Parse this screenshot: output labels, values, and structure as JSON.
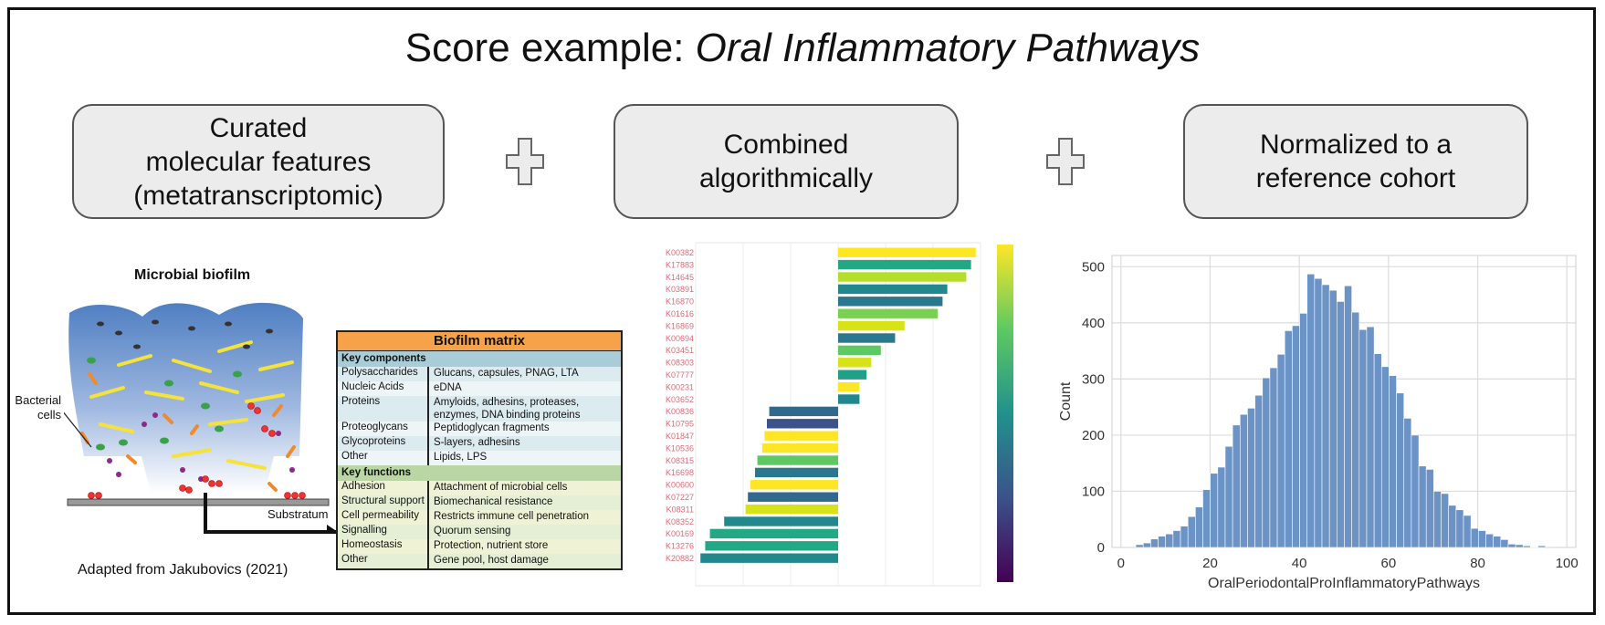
{
  "title": {
    "prefix": "Score example: ",
    "emphasis": "Oral Inflammatory Pathways"
  },
  "steps": [
    {
      "text": "Curated\nmolecular features\n(metatranscriptomic)"
    },
    {
      "text": "Combined\nalgorithmically"
    },
    {
      "text": "Normalized to a\nreference cohort"
    }
  ],
  "biofilm": {
    "title": "Microbial biofilm",
    "bacteria_label": "Bacterial\ncells",
    "substratum_label": "Substratum",
    "citation": "Adapted from Jakubovics (2021)"
  },
  "matrix": {
    "title": "Biofilm matrix",
    "components_header": "Key components",
    "components": [
      {
        "k": "Polysaccharides",
        "v": "Glucans, capsules, PNAG, LTA"
      },
      {
        "k": "Nucleic Acids",
        "v": "eDNA"
      },
      {
        "k": "Proteins",
        "v": "Amyloids, adhesins, proteases, enzymes, DNA binding proteins"
      },
      {
        "k": "Proteoglycans",
        "v": "Peptidoglycan fragments"
      },
      {
        "k": "Glycoproteins",
        "v": "S-layers, adhesins"
      },
      {
        "k": "Other",
        "v": "Lipids, LPS"
      }
    ],
    "functions_header": "Key functions",
    "functions": [
      {
        "k": "Adhesion",
        "v": "Attachment of microbial cells"
      },
      {
        "k": "Structural support",
        "v": "Biomechanical resistance"
      },
      {
        "k": "Cell permeability",
        "v": "Restricts immune cell penetration"
      },
      {
        "k": "Signalling",
        "v": "Quorum sensing"
      },
      {
        "k": "Homeostasis",
        "v": "Protection, nutrient store"
      },
      {
        "k": "Other",
        "v": "Gene pool, host damage"
      }
    ]
  },
  "chart_data": [
    {
      "type": "bar",
      "orientation": "horizontal",
      "categories": [
        "K00382",
        "K17883",
        "K14645",
        "K03891",
        "K16870",
        "K01616",
        "K16869",
        "K00694",
        "K03451",
        "K08303",
        "K07777",
        "K00231",
        "K03652",
        "K00836",
        "K10795",
        "K01847",
        "K10536",
        "K08315",
        "K16698",
        "K00600",
        "K07227",
        "K08311",
        "K08352",
        "K00169",
        "K13276",
        "K20882"
      ],
      "values": [
        0.29,
        0.28,
        0.27,
        0.23,
        0.22,
        0.21,
        0.14,
        0.12,
        0.09,
        0.07,
        0.06,
        0.045,
        0.045,
        -0.145,
        -0.15,
        -0.155,
        -0.16,
        -0.17,
        -0.175,
        -0.185,
        -0.19,
        -0.195,
        -0.24,
        -0.27,
        -0.28,
        -0.29
      ],
      "bar_colors": [
        "#fde725",
        "#22a884",
        "#b5de2b",
        "#23888e",
        "#2a788e",
        "#7ad151",
        "#d8e219",
        "#2a788e",
        "#5ec962",
        "#d8e219",
        "#1fa188",
        "#fde725",
        "#23888e",
        "#31688e",
        "#3b528b",
        "#fde725",
        "#fde725",
        "#5ec962",
        "#2a788e",
        "#fde725",
        "#31688e",
        "#d8e219",
        "#23888e",
        "#22a884",
        "#22a884",
        "#23888e"
      ],
      "xlim": [
        -0.3,
        0.3
      ],
      "colorbar": {
        "colormap": "viridis"
      }
    },
    {
      "type": "bar",
      "subtype": "histogram",
      "xlabel": "OralPeriodontalProInflammatoryPathways",
      "ylabel": "Count",
      "xlim": [
        -2,
        102
      ],
      "ylim": [
        0,
        520
      ],
      "xticks": [
        0,
        20,
        40,
        60,
        80,
        100
      ],
      "yticks": [
        0,
        100,
        200,
        300,
        400,
        500
      ],
      "bin_width": 1.67,
      "bin_start": 0,
      "values": [
        0,
        0,
        5,
        8,
        15,
        20,
        24,
        30,
        38,
        55,
        72,
        103,
        132,
        143,
        180,
        218,
        237,
        248,
        271,
        302,
        320,
        344,
        386,
        395,
        417,
        487,
        479,
        468,
        458,
        438,
        466,
        419,
        388,
        393,
        345,
        322,
        306,
        275,
        230,
        200,
        145,
        139,
        100,
        96,
        75,
        67,
        57,
        34,
        30,
        24,
        20,
        14,
        6,
        5,
        3,
        1,
        3,
        0
      ],
      "color": "#6b93c6",
      "grid": true
    }
  ]
}
